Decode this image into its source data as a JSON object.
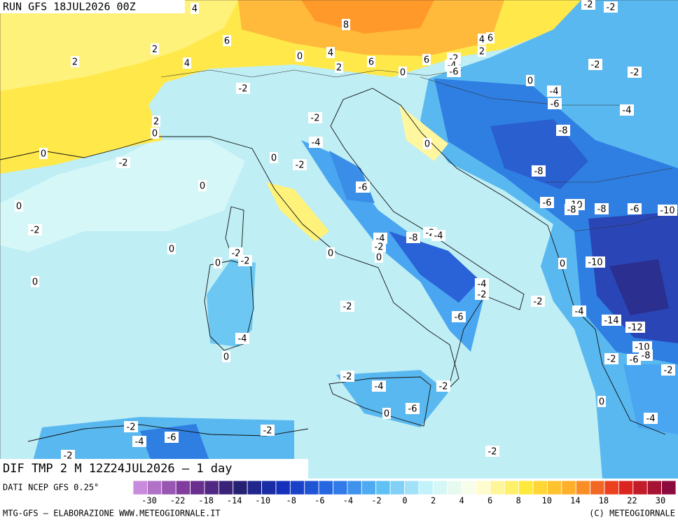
{
  "header": {
    "run": "RUN GFS 18JUL2026 00Z"
  },
  "map": {
    "title": "DIF TMP 2 M 12Z24JUL2026 – 1 day",
    "contour_labels": [
      "4",
      "-2",
      "-2",
      "8",
      "6",
      "4",
      "6",
      "2",
      "2",
      "4",
      "0",
      "4",
      "2",
      "6",
      "0",
      "6",
      "-2",
      "-4",
      "-6",
      "2",
      "-2",
      "-2",
      "0",
      "-4",
      "-6",
      "-4",
      "-2",
      "-2",
      "2",
      "0",
      "-8",
      "0",
      "-4",
      "0",
      "-2",
      "0",
      "-2",
      "-8",
      "0",
      "-6",
      "-6",
      "-10",
      "-8",
      "-8",
      "-6",
      "-10",
      "0",
      "-2",
      "-4",
      "-8",
      "-2",
      "-4",
      "-2",
      "0",
      "-2",
      "-2",
      "0",
      "0",
      "0",
      "-10",
      "0",
      "0",
      "-4",
      "-2",
      "-2",
      "-2",
      "-4",
      "-6",
      "-14",
      "-12",
      "-4",
      "0",
      "-10",
      "-2",
      "-6",
      "-8",
      "-2",
      "-2",
      "-4",
      "-2",
      "0",
      "-6",
      "0",
      "-4",
      "-2",
      "-2",
      "-4",
      "-6",
      "-2",
      "-2"
    ]
  },
  "legend": {
    "source": "DATI NCEP GFS 0.25°",
    "ticks": [
      -30,
      -22,
      -18,
      -14,
      -10,
      -8,
      -6,
      -4,
      -2,
      0,
      2,
      4,
      6,
      8,
      10,
      14,
      18,
      22,
      30
    ]
  },
  "footer": {
    "left": "MTG-GFS – ELABORAZIONE WWW.METEOGIORNALE.IT",
    "right": "(C) METEOGIORNALE"
  }
}
